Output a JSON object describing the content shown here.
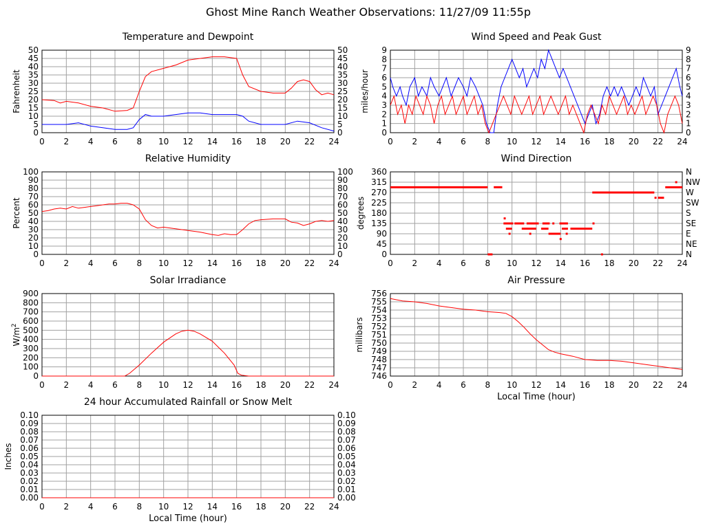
{
  "page_title": "Ghost Mine Ranch Weather Observations: 11/27/09 11:55p",
  "colors": {
    "red": "#ff0000",
    "blue": "#0000ff",
    "grid": "#a0a0a0"
  },
  "chart_data": [
    {
      "id": "temp",
      "type": "line",
      "title": "Temperature and Dewpoint",
      "xlabel": "",
      "ylabel": "Fahrenheit",
      "xlim": [
        0,
        24
      ],
      "ylim": [
        0,
        50
      ],
      "x_ticks": [
        "0",
        "2",
        "4",
        "6",
        "8",
        "10",
        "12",
        "14",
        "16",
        "18",
        "20",
        "22",
        "24"
      ],
      "y_ticks": [
        "0",
        "5",
        "10",
        "15",
        "20",
        "25",
        "30",
        "35",
        "40",
        "45",
        "50"
      ],
      "y_ticks_right": [
        "0",
        "5",
        "10",
        "15",
        "20",
        "25",
        "30",
        "35",
        "40",
        "45",
        "50"
      ],
      "series": [
        {
          "color": "#ff0000",
          "x": [
            0,
            1,
            1.5,
            2,
            3,
            4,
            5,
            6,
            7,
            7.5,
            8,
            8.5,
            9,
            10,
            11,
            12,
            13,
            14,
            15,
            16,
            16.5,
            17,
            18,
            19,
            20,
            20.5,
            21,
            21.5,
            22,
            22.5,
            23,
            23.5,
            24
          ],
          "y": [
            20,
            19.5,
            18,
            19,
            18,
            16,
            15,
            13,
            13.5,
            15,
            25,
            34,
            37,
            39,
            41,
            44,
            45,
            46,
            46,
            45,
            35,
            28,
            25,
            24,
            24,
            27,
            31,
            32,
            31,
            26,
            23,
            24,
            23
          ]
        },
        {
          "color": "#0000ff",
          "x": [
            0,
            1,
            2,
            3,
            4,
            5,
            6,
            7,
            7.5,
            8,
            8.5,
            9,
            10,
            11,
            12,
            13,
            14,
            15,
            16,
            16.5,
            17,
            18,
            19,
            20,
            21,
            22,
            23,
            24
          ],
          "y": [
            5,
            5,
            5,
            6,
            4,
            3,
            2,
            2,
            3,
            8,
            11,
            10,
            10,
            11,
            12,
            12,
            11,
            11,
            11,
            10,
            7,
            5,
            5,
            5,
            7,
            6,
            3,
            1
          ]
        }
      ]
    },
    {
      "id": "wind",
      "type": "line",
      "title": "Wind Speed and Peak Gust",
      "xlabel": "",
      "ylabel": "miles/hour",
      "xlim": [
        0,
        24
      ],
      "ylim": [
        0,
        9
      ],
      "x_ticks": [
        "0",
        "2",
        "4",
        "6",
        "8",
        "10",
        "12",
        "14",
        "16",
        "18",
        "20",
        "22",
        "24"
      ],
      "y_ticks": [
        "0",
        "1",
        "2",
        "3",
        "4",
        "5",
        "6",
        "7",
        "8",
        "9"
      ],
      "y_ticks_right": [
        "0",
        "1",
        "2",
        "3",
        "4",
        "5",
        "6",
        "7",
        "8",
        "9"
      ],
      "series": [
        {
          "color": "#0000ff",
          "x": [
            0,
            0.2,
            0.5,
            0.8,
            1,
            1.3,
            1.6,
            2,
            2.3,
            2.6,
            3,
            3.3,
            3.6,
            4,
            4.3,
            4.6,
            5,
            5.3,
            5.6,
            6,
            6.3,
            6.6,
            7,
            7.3,
            7.6,
            7.9,
            8.2,
            8.5,
            8.8,
            9.1,
            9.4,
            9.7,
            10,
            10.3,
            10.6,
            10.9,
            11.2,
            11.5,
            11.8,
            12.1,
            12.4,
            12.7,
            13,
            13.3,
            13.6,
            13.9,
            14.2,
            14.5,
            14.8,
            15.1,
            15.4,
            15.7,
            16,
            16.3,
            16.6,
            16.9,
            17.2,
            17.5,
            17.8,
            18.1,
            18.4,
            18.7,
            19,
            19.3,
            19.6,
            19.9,
            20.2,
            20.5,
            20.8,
            21.1,
            21.4,
            21.7,
            22,
            22.3,
            22.6,
            22.9,
            23.2,
            23.5,
            23.8,
            24
          ],
          "y": [
            6,
            5,
            4,
            5,
            4,
            3,
            5,
            6,
            4,
            5,
            4,
            6,
            5,
            4,
            5,
            6,
            4,
            5,
            6,
            5,
            4,
            6,
            5,
            4,
            3,
            1,
            0,
            0,
            3,
            5,
            6,
            7,
            8,
            7,
            6,
            7,
            5,
            6,
            7,
            6,
            8,
            7,
            9,
            8,
            7,
            6,
            7,
            6,
            5,
            4,
            3,
            2,
            1,
            2,
            3,
            1,
            2,
            4,
            5,
            4,
            5,
            4,
            5,
            4,
            3,
            4,
            5,
            4,
            6,
            5,
            4,
            5,
            2,
            3,
            4,
            5,
            6,
            7,
            5,
            4
          ]
        },
        {
          "color": "#ff0000",
          "x": [
            0,
            0.3,
            0.6,
            0.9,
            1.2,
            1.5,
            1.8,
            2.1,
            2.4,
            2.7,
            3,
            3.3,
            3.6,
            3.9,
            4.2,
            4.5,
            4.8,
            5.1,
            5.4,
            5.7,
            6,
            6.3,
            6.6,
            6.9,
            7.2,
            7.5,
            7.8,
            8.1,
            8.4,
            8.7,
            9,
            9.3,
            9.6,
            9.9,
            10.2,
            10.5,
            10.8,
            11.1,
            11.4,
            11.7,
            12,
            12.3,
            12.6,
            12.9,
            13.2,
            13.5,
            13.8,
            14.1,
            14.4,
            14.7,
            15,
            15.3,
            15.6,
            15.9,
            16.2,
            16.5,
            16.8,
            17.1,
            17.4,
            17.7,
            18,
            18.3,
            18.6,
            18.9,
            19.2,
            19.5,
            19.8,
            20.1,
            20.4,
            20.7,
            21,
            21.3,
            21.6,
            21.9,
            22.2,
            22.5,
            22.8,
            23.1,
            23.4,
            23.7,
            24
          ],
          "y": [
            3,
            4,
            2,
            3,
            1,
            3,
            2,
            4,
            3,
            2,
            4,
            3,
            1,
            3,
            4,
            2,
            3,
            4,
            2,
            3,
            4,
            2,
            3,
            4,
            2,
            3,
            1,
            0,
            1,
            2,
            3,
            4,
            3,
            2,
            4,
            3,
            2,
            3,
            4,
            2,
            3,
            4,
            2,
            3,
            4,
            3,
            2,
            3,
            4,
            2,
            3,
            2,
            1,
            0,
            2,
            3,
            2,
            1,
            3,
            2,
            4,
            3,
            2,
            3,
            4,
            2,
            3,
            2,
            3,
            4,
            2,
            3,
            4,
            3,
            1,
            0,
            2,
            3,
            4,
            3,
            1
          ]
        }
      ]
    },
    {
      "id": "rh",
      "type": "line",
      "title": "Relative Humidity",
      "xlabel": "",
      "ylabel": "Percent",
      "xlim": [
        0,
        24
      ],
      "ylim": [
        0,
        100
      ],
      "x_ticks": [
        "0",
        "2",
        "4",
        "6",
        "8",
        "10",
        "12",
        "14",
        "16",
        "18",
        "20",
        "22",
        "24"
      ],
      "y_ticks": [
        "0",
        "10",
        "20",
        "30",
        "40",
        "50",
        "60",
        "70",
        "80",
        "90",
        "100"
      ],
      "y_ticks_right": [
        "0",
        "10",
        "20",
        "30",
        "40",
        "50",
        "60",
        "70",
        "80",
        "90",
        "100"
      ],
      "series": [
        {
          "color": "#ff0000",
          "x": [
            0,
            0.5,
            1,
            1.5,
            2,
            2.5,
            3,
            3.5,
            4,
            4.5,
            5,
            5.5,
            6,
            6.5,
            7,
            7.5,
            8,
            8.5,
            9,
            9.5,
            10,
            11,
            12,
            13,
            14,
            14.5,
            15,
            15.5,
            16,
            16.5,
            17,
            17.5,
            18,
            19,
            20,
            20.5,
            21,
            21.5,
            22,
            22.5,
            23,
            23.5,
            24
          ],
          "y": [
            52,
            53,
            55,
            56,
            55,
            58,
            56,
            57,
            58,
            59,
            60,
            61,
            61,
            62,
            62,
            60,
            55,
            42,
            35,
            32,
            33,
            31,
            29,
            27,
            24,
            23,
            25,
            24,
            24,
            30,
            37,
            41,
            42,
            43,
            43,
            39,
            38,
            35,
            37,
            40,
            41,
            40,
            41
          ]
        }
      ]
    },
    {
      "id": "wdir",
      "type": "scatter",
      "title": "Wind Direction",
      "xlabel": "",
      "ylabel": "degrees",
      "xlim": [
        0,
        24
      ],
      "ylim": [
        0,
        360
      ],
      "x_ticks": [
        "0",
        "2",
        "4",
        "6",
        "8",
        "10",
        "12",
        "14",
        "16",
        "18",
        "20",
        "22",
        "24"
      ],
      "y_ticks": [
        "0",
        "45",
        "90",
        "135",
        "180",
        "225",
        "270",
        "315",
        "360"
      ],
      "y_ticks_right": [
        "N",
        "NE",
        "E",
        "SE",
        "S",
        "SW",
        "W",
        "NW",
        "N"
      ],
      "segments": [
        {
          "x": [
            0,
            8.0
          ],
          "y": 293
        },
        {
          "x": [
            8.5,
            9.2
          ],
          "y": 293
        },
        {
          "x": [
            8.0,
            8.4
          ],
          "y": 0
        },
        {
          "x": [
            9.3,
            10.1
          ],
          "y": 135
        },
        {
          "x": [
            10.2,
            11.0
          ],
          "y": 135
        },
        {
          "x": [
            11.2,
            12.2
          ],
          "y": 135
        },
        {
          "x": [
            12.5,
            13.1
          ],
          "y": 135
        },
        {
          "x": [
            9.5,
            10.0
          ],
          "y": 112
        },
        {
          "x": [
            10.8,
            12.0
          ],
          "y": 112
        },
        {
          "x": [
            12.4,
            13.0
          ],
          "y": 112
        },
        {
          "x": [
            13.9,
            14.6
          ],
          "y": 135
        },
        {
          "x": [
            14.1,
            14.6
          ],
          "y": 112
        },
        {
          "x": [
            14.8,
            16.6
          ],
          "y": 112
        },
        {
          "x": [
            13.0,
            14.0
          ],
          "y": 90
        },
        {
          "x": [
            16.6,
            21.7
          ],
          "y": 270
        },
        {
          "x": [
            22.0,
            22.5
          ],
          "y": 247
        },
        {
          "x": [
            22.6,
            24.0
          ],
          "y": 293
        }
      ],
      "points": [
        {
          "x": 9.4,
          "y": 157
        },
        {
          "x": 9.8,
          "y": 90
        },
        {
          "x": 11.5,
          "y": 90
        },
        {
          "x": 13.4,
          "y": 135
        },
        {
          "x": 14.0,
          "y": 67
        },
        {
          "x": 14.5,
          "y": 90
        },
        {
          "x": 16.7,
          "y": 135
        },
        {
          "x": 17.4,
          "y": 0
        },
        {
          "x": 21.8,
          "y": 247
        },
        {
          "x": 23.5,
          "y": 315
        }
      ]
    },
    {
      "id": "solar",
      "type": "line",
      "title": "Solar Irradiance",
      "xlabel": "",
      "ylabel": "W/m2",
      "xlim": [
        0,
        24
      ],
      "ylim": [
        0,
        900
      ],
      "x_ticks": [
        "0",
        "2",
        "4",
        "6",
        "8",
        "10",
        "12",
        "14",
        "16",
        "18",
        "20",
        "22",
        "24"
      ],
      "y_ticks": [
        "0",
        "100",
        "200",
        "300",
        "400",
        "500",
        "600",
        "700",
        "800",
        "900"
      ],
      "y_ticks_right": [],
      "series": [
        {
          "color": "#ff0000",
          "x": [
            0,
            6.8,
            7.2,
            8,
            9,
            10,
            11,
            11.5,
            12,
            12.5,
            13,
            14,
            15,
            15.8,
            16.1,
            16.4,
            17,
            24
          ],
          "y": [
            0,
            0,
            30,
            120,
            250,
            370,
            460,
            490,
            500,
            490,
            460,
            380,
            250,
            120,
            30,
            10,
            0,
            0
          ]
        }
      ]
    },
    {
      "id": "pressure",
      "type": "line",
      "title": "Air Pressure",
      "xlabel": "Local Time (hour)",
      "ylabel": "millibars",
      "xlim": [
        0,
        24
      ],
      "ylim": [
        746,
        756
      ],
      "x_ticks": [
        "0",
        "2",
        "4",
        "6",
        "8",
        "10",
        "12",
        "14",
        "16",
        "18",
        "20",
        "22",
        "24"
      ],
      "y_ticks": [
        "746",
        "747",
        "748",
        "749",
        "750",
        "751",
        "752",
        "753",
        "754",
        "755",
        "756"
      ],
      "y_ticks_right": [],
      "series": [
        {
          "color": "#ff0000",
          "x": [
            0,
            1,
            2,
            3,
            4,
            5,
            6,
            7,
            8,
            9,
            9.5,
            10,
            10.5,
            11,
            11.5,
            12,
            12.5,
            13,
            13.5,
            14,
            15,
            16,
            17,
            18,
            19,
            20,
            21,
            22,
            23,
            24
          ],
          "y": [
            755.4,
            755.1,
            755,
            754.8,
            754.5,
            754.3,
            754.1,
            754,
            753.8,
            753.7,
            753.6,
            753.2,
            752.6,
            751.9,
            751.1,
            750.4,
            749.8,
            749.2,
            748.9,
            748.7,
            748.4,
            748,
            747.9,
            747.9,
            747.8,
            747.6,
            747.4,
            747.2,
            747,
            746.8
          ]
        }
      ]
    },
    {
      "id": "rain",
      "type": "line",
      "title": "24 hour Accumulated Rainfall or Snow Melt",
      "xlabel": "Local Time (hour)",
      "ylabel": "Inches",
      "xlim": [
        0,
        24
      ],
      "ylim": [
        0,
        0.1
      ],
      "x_ticks": [
        "0",
        "2",
        "4",
        "6",
        "8",
        "10",
        "12",
        "14",
        "16",
        "18",
        "20",
        "22",
        "24"
      ],
      "y_ticks": [
        "0.00",
        "0.01",
        "0.02",
        "0.03",
        "0.04",
        "0.05",
        "0.06",
        "0.07",
        "0.08",
        "0.09",
        "0.10"
      ],
      "y_ticks_right": [
        "0.00",
        "0.01",
        "0.02",
        "0.03",
        "0.04",
        "0.05",
        "0.06",
        "0.07",
        "0.08",
        "0.09",
        "0.10"
      ],
      "series": [
        {
          "color": "#ff0000",
          "x": [
            0,
            24
          ],
          "y": [
            0,
            0
          ]
        }
      ]
    }
  ]
}
